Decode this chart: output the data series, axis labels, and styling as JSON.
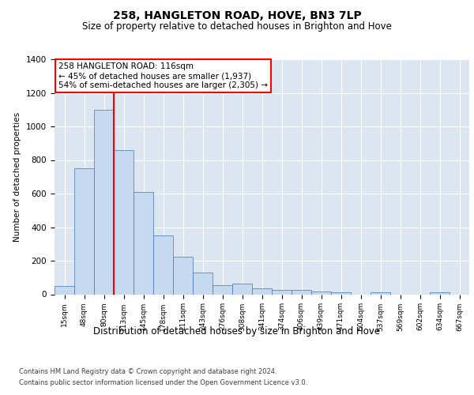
{
  "title": "258, HANGLETON ROAD, HOVE, BN3 7LP",
  "subtitle": "Size of property relative to detached houses in Brighton and Hove",
  "xlabel": "Distribution of detached houses by size in Brighton and Hove",
  "ylabel": "Number of detached properties",
  "footnote1": "Contains HM Land Registry data © Crown copyright and database right 2024.",
  "footnote2": "Contains public sector information licensed under the Open Government Licence v3.0.",
  "categories": [
    "15sqm",
    "48sqm",
    "80sqm",
    "113sqm",
    "145sqm",
    "178sqm",
    "211sqm",
    "243sqm",
    "276sqm",
    "308sqm",
    "341sqm",
    "374sqm",
    "406sqm",
    "439sqm",
    "471sqm",
    "504sqm",
    "537sqm",
    "569sqm",
    "602sqm",
    "634sqm",
    "667sqm"
  ],
  "values": [
    50,
    750,
    1100,
    860,
    610,
    350,
    225,
    130,
    55,
    65,
    35,
    25,
    25,
    15,
    10,
    0,
    10,
    0,
    0,
    10,
    0
  ],
  "bar_color": "#c5d9f1",
  "bar_edge_color": "#4472c4",
  "background_color": "#dce6f1",
  "annotation_line1": "258 HANGLETON ROAD: 116sqm",
  "annotation_line2": "← 45% of detached houses are smaller (1,937)",
  "annotation_line3": "54% of semi-detached houses are larger (2,305) →",
  "annotation_box_facecolor": "#ffffff",
  "annotation_border_color": "#ff0000",
  "redline_color": "#ff0000",
  "redline_x": 2.5,
  "ylim": [
    0,
    1400
  ],
  "yticks": [
    0,
    200,
    400,
    600,
    800,
    1000,
    1200,
    1400
  ]
}
